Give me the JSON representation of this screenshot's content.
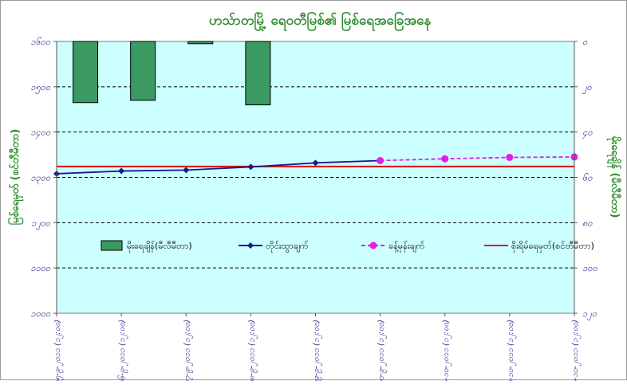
{
  "chart_data": {
    "type": "combo",
    "title": "ဟသ်ာတမြို့ ရေဝတီမြစ်၏ မြစ်ရေအခြေအနေ",
    "ylabel_left": "မြစ်ရေမှတ် (စင်တီမီတာ)",
    "ylabel_right": "မိုးရေချိန် (မီလီမီတာ)",
    "left_axis": {
      "min": 1000,
      "max": 1600,
      "ticks": [
        1000,
        1100,
        1200,
        1300,
        1400,
        1500,
        1600
      ],
      "tick_labels": [
        "၁၀၀၀",
        "၁၁၀၀",
        "၁၂၀၀",
        "၁၃၀၀",
        "၁၄၀၀",
        "၁၅၀၀",
        "၁၆၀၀"
      ]
    },
    "right_axis": {
      "min": 0,
      "max": 120,
      "inverted": true,
      "ticks": [
        0,
        20,
        40,
        60,
        80,
        100,
        120
      ],
      "tick_labels": [
        "၀",
        "၂၀",
        "၄၀",
        "၆၀",
        "၈၀",
        "၁၀၀",
        "၁၂၀"
      ]
    },
    "categories": [
      "၂၅-၉-၂၀၁၁ (၁၂:၀၀)",
      "၂၆-၉-၂၀၁၁ (၁၂:၀၀)",
      "၂၇-၉-၂၀၁၁ (၁၂:၀၀)",
      "၂၈-၉-၂၀၁၁ (၁၂:၀၀)",
      "၂၉-၉-၂၀၁၁ (၁၂:၀၀)",
      "၃၀-၉-၂၀၁၁ (၁၂:၀၀)",
      "၁-၁၀-၂၀၁၁ (၁၂:၀၀)",
      "၂-၁၀-၂၀၁၁ (၁၂:၀၀)",
      "၃-၁၀-၂၀၁၁ (၁၂:၀၀)"
    ],
    "series": [
      {
        "name": "မိုးရေချိန်(မီလီမီတာ)",
        "kind": "bar",
        "axis": "right",
        "color": "#3a9a62",
        "values": [
          27,
          26,
          1,
          28,
          null,
          null,
          null,
          null,
          null
        ]
      },
      {
        "name": "တိုင်းထွာချက်",
        "kind": "line",
        "axis": "left",
        "color": "#1a1a8a",
        "values": [
          1308,
          1314,
          1316,
          1323,
          1332,
          1337,
          null,
          null,
          null
        ]
      },
      {
        "name": "ခန့်မှန်းချက်",
        "kind": "line-dashed",
        "axis": "left",
        "color": "#e020e0",
        "values": [
          null,
          null,
          null,
          null,
          null,
          1337,
          1341,
          1344,
          1345
        ]
      },
      {
        "name": "စိုးရိမ်ရေမှတ်(စင်တီမီတာ)",
        "kind": "hline",
        "axis": "left",
        "color": "#e01010",
        "value": 1324
      }
    ],
    "grid": true,
    "legend_position": "bottom-center",
    "plot_background": "#ccffff"
  }
}
